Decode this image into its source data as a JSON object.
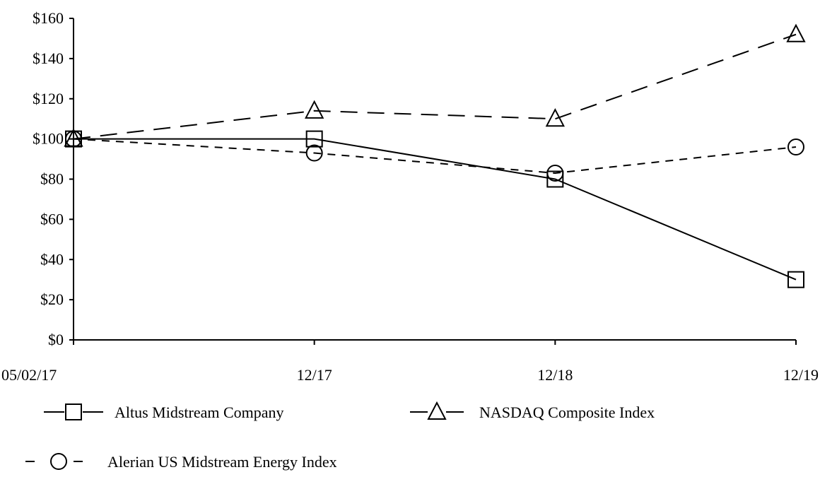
{
  "chart_data": {
    "type": "line",
    "title": "",
    "xlabel": "",
    "ylabel": "",
    "categories": [
      "05/02/17",
      "12/17",
      "12/18",
      "12/19"
    ],
    "ylim": [
      0,
      160
    ],
    "yticks": [
      "$0",
      "$20",
      "$40",
      "$60",
      "$80",
      "$100",
      "$120",
      "$140",
      "$160"
    ],
    "ytick_values": [
      0,
      20,
      40,
      60,
      80,
      100,
      120,
      140,
      160
    ],
    "grid": false,
    "legend_position": "bottom",
    "series": [
      {
        "name": "Altus Midstream Company",
        "values": [
          100,
          100,
          80,
          30
        ],
        "marker": "square",
        "line_style": "solid",
        "color": "#000000"
      },
      {
        "name": "NASDAQ Composite Index",
        "values": [
          100,
          114,
          110,
          152
        ],
        "marker": "triangle",
        "line_style": "long-dash",
        "color": "#000000"
      },
      {
        "name": "Alerian US Midstream Energy Index",
        "values": [
          100,
          93,
          83,
          96
        ],
        "marker": "circle",
        "line_style": "short-dash",
        "color": "#000000"
      }
    ]
  }
}
